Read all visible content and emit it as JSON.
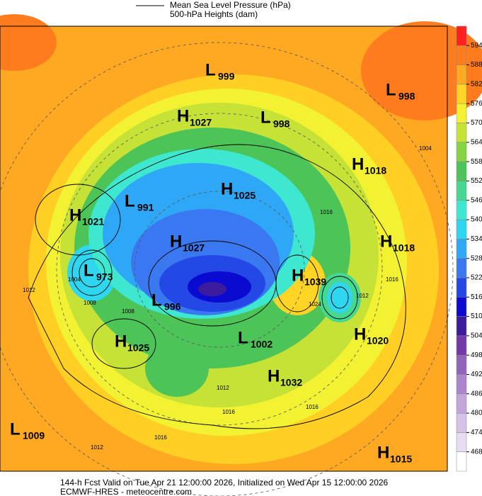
{
  "header": {
    "legend_line": "Mean Sea Level Pressure (hPa)",
    "legend_fill": "500-hPa Heights (dam)"
  },
  "colorbar": {
    "ticks": [
      468,
      474,
      480,
      486,
      492,
      498,
      504,
      510,
      516,
      522,
      528,
      534,
      540,
      546,
      552,
      558,
      564,
      570,
      576,
      582,
      588,
      594
    ],
    "colors": [
      "#ffffff",
      "#e8dcf0",
      "#d6c2e6",
      "#c2a6da",
      "#ab86cc",
      "#9264bc",
      "#7438aa",
      "#3c1c9c",
      "#0a0ad0",
      "#2448e6",
      "#3a78f2",
      "#2ea8f6",
      "#2ed6f0",
      "#3ee8d0",
      "#46d890",
      "#4cc458",
      "#86d444",
      "#c6e236",
      "#f2f232",
      "#ffd424",
      "#ffa822",
      "#ff7c1e",
      "#ff2020"
    ]
  },
  "centers": [
    {
      "letter": "L",
      "value": 999
    },
    {
      "letter": "L",
      "value": 998
    },
    {
      "letter": "H",
      "value": 1027
    },
    {
      "letter": "L",
      "value": 998
    },
    {
      "letter": "H",
      "value": 1018
    },
    {
      "letter": "H",
      "value": 1025
    },
    {
      "letter": "L",
      "value": 991
    },
    {
      "letter": "H",
      "value": 1021
    },
    {
      "letter": "H",
      "value": 1018
    },
    {
      "letter": "H",
      "value": 1027
    },
    {
      "letter": "L",
      "value": 973
    },
    {
      "letter": "H",
      "value": 1039
    },
    {
      "letter": "L",
      "value": 996
    },
    {
      "letter": "H",
      "value": 1020
    },
    {
      "letter": "H",
      "value": 1025
    },
    {
      "letter": "L",
      "value": 1002
    },
    {
      "letter": "H",
      "value": 1032
    },
    {
      "letter": "L",
      "value": 1009
    },
    {
      "letter": "H",
      "value": 1015
    }
  ],
  "contour_labels": [
    1004,
    1016,
    1016,
    1024,
    1012,
    1012,
    1004,
    1008,
    1008,
    1012,
    1016,
    1012,
    1016,
    1016
  ],
  "footer": {
    "line1": "144-h Fcst Valid on Tue Apr 21 12:00:00 2026, Initialized on Wed Apr 15 12:00:00 2026",
    "line2": "ECMWF-HRES  - meteocentre.com"
  }
}
